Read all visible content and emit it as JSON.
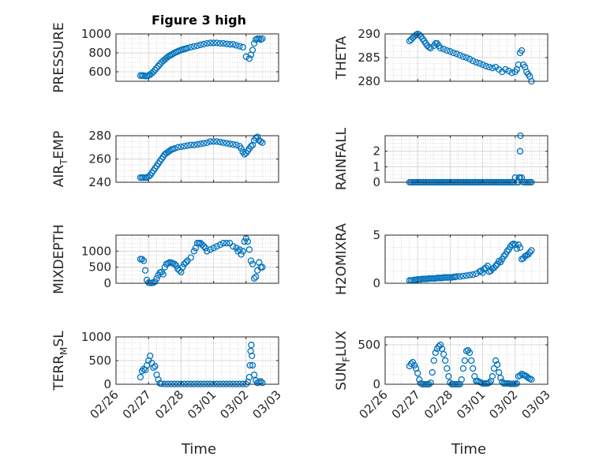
{
  "figure": {
    "title": "Figure 3 high",
    "xlabel": "Time",
    "date_ticks": [
      "02/26",
      "02/27",
      "02/28",
      "03/01",
      "03/02",
      "03/03"
    ],
    "marker_color": "#0072BD"
  },
  "chart_data": [
    {
      "type": "scatter",
      "name": "PRESSURE",
      "ylabel": "PRESSURE",
      "ylim": [
        500,
        1000
      ],
      "yticks": [
        600,
        800,
        1000
      ],
      "xlim": [
        "02/26",
        "03/03"
      ],
      "grid": true,
      "x": [
        26.75,
        26.8,
        26.85,
        26.9,
        26.95,
        27.0,
        27.05,
        27.1,
        27.15,
        27.2,
        27.25,
        27.3,
        27.35,
        27.4,
        27.45,
        27.5,
        27.55,
        27.6,
        27.65,
        27.7,
        27.75,
        27.8,
        27.85,
        27.9,
        27.95,
        28.0,
        28.05,
        28.1,
        28.15,
        28.2,
        28.3,
        28.4,
        28.5,
        28.6,
        28.7,
        28.8,
        28.9,
        29.0,
        29.1,
        29.2,
        29.3,
        29.4,
        29.5,
        29.6,
        29.7,
        29.8,
        29.9,
        30.0,
        30.1,
        30.15,
        30.2,
        30.25,
        30.3,
        30.35,
        30.4,
        30.45,
        30.5
      ],
      "y": [
        560,
        560,
        560,
        555,
        555,
        560,
        570,
        585,
        600,
        620,
        640,
        660,
        680,
        700,
        715,
        730,
        745,
        760,
        770,
        780,
        790,
        800,
        808,
        815,
        822,
        830,
        835,
        840,
        845,
        850,
        860,
        868,
        875,
        885,
        893,
        900,
        905,
        905,
        905,
        900,
        900,
        895,
        890,
        890,
        880,
        870,
        860,
        760,
        740,
        780,
        830,
        900,
        940,
        950,
        950,
        940,
        950
      ]
    },
    {
      "type": "scatter",
      "name": "THETA",
      "ylabel": "THETA",
      "ylim": [
        280,
        290
      ],
      "yticks": [
        280,
        285,
        290
      ],
      "xlim": [
        "02/26",
        "03/03"
      ],
      "grid": true,
      "x": [
        26.75,
        26.8,
        26.85,
        26.9,
        26.95,
        27.0,
        27.05,
        27.1,
        27.15,
        27.2,
        27.25,
        27.3,
        27.35,
        27.4,
        27.5,
        27.55,
        27.6,
        27.65,
        27.7,
        27.8,
        27.9,
        28.0,
        28.1,
        28.2,
        28.3,
        28.4,
        28.5,
        28.6,
        28.7,
        28.8,
        28.9,
        29.0,
        29.1,
        29.2,
        29.3,
        29.4,
        29.5,
        29.6,
        29.7,
        29.8,
        29.9,
        30.0,
        30.05,
        30.1,
        30.15,
        30.2,
        30.25,
        30.3,
        30.35,
        30.4,
        30.45,
        30.5
      ],
      "y": [
        288.5,
        288.8,
        289.2,
        289.5,
        289.8,
        290,
        289.8,
        289.5,
        289,
        288.5,
        288,
        287.5,
        287.2,
        287,
        287.5,
        288,
        288,
        287.5,
        287,
        286.8,
        286.5,
        286.3,
        286,
        285.8,
        285.5,
        285.2,
        285,
        284.7,
        284.3,
        284,
        283.8,
        283.5,
        283.2,
        283,
        282.8,
        283,
        282.5,
        282,
        282.5,
        282.2,
        281.8,
        282,
        282.5,
        283.5,
        286,
        286.5,
        283.5,
        283,
        282,
        281.5,
        281,
        280
      ]
    },
    {
      "type": "scatter",
      "name": "AIR_TEMP",
      "ylabel": "AIR_TEMP",
      "ylim": [
        240,
        280
      ],
      "yticks": [
        240,
        260,
        280
      ],
      "xlim": [
        "02/26",
        "03/03"
      ],
      "grid": true,
      "x": [
        26.75,
        26.8,
        26.85,
        26.9,
        26.95,
        27.0,
        27.05,
        27.1,
        27.15,
        27.2,
        27.25,
        27.3,
        27.35,
        27.4,
        27.45,
        27.5,
        27.55,
        27.6,
        27.65,
        27.7,
        27.75,
        27.8,
        27.9,
        28.0,
        28.1,
        28.2,
        28.3,
        28.4,
        28.5,
        28.6,
        28.7,
        28.8,
        28.9,
        29.0,
        29.1,
        29.2,
        29.3,
        29.4,
        29.5,
        29.6,
        29.7,
        29.8,
        29.85,
        29.9,
        29.95,
        30.0,
        30.05,
        30.1,
        30.15,
        30.2,
        30.25,
        30.3,
        30.35,
        30.4,
        30.45,
        30.5
      ],
      "y": [
        244,
        244,
        244,
        244,
        244,
        245,
        246,
        248,
        250,
        252,
        254,
        256,
        258,
        260,
        262,
        264,
        265,
        266,
        267,
        268,
        268.5,
        269,
        270,
        270.5,
        271,
        271.5,
        272,
        272,
        272.5,
        273,
        273.5,
        274,
        275,
        275,
        275,
        274.5,
        274,
        273.5,
        273,
        272.5,
        272,
        271,
        269,
        266,
        264,
        265,
        267,
        269,
        271,
        272,
        276,
        278,
        279,
        276,
        275,
        274
      ]
    },
    {
      "type": "scatter",
      "name": "RAINFALL",
      "ylabel": "RAINFALL",
      "ylim": [
        0,
        3
      ],
      "yticks": [
        0,
        1,
        2
      ],
      "xlim": [
        "02/26",
        "03/03"
      ],
      "grid": true,
      "x": [
        26.75,
        26.8,
        26.85,
        26.9,
        26.95,
        27.0,
        27.05,
        27.1,
        27.15,
        27.2,
        27.25,
        27.3,
        27.35,
        27.4,
        27.45,
        27.5,
        27.55,
        27.6,
        27.65,
        27.7,
        27.75,
        27.8,
        27.85,
        27.9,
        27.95,
        28.0,
        28.05,
        28.1,
        28.15,
        28.2,
        28.25,
        28.3,
        28.35,
        28.4,
        28.45,
        28.5,
        28.55,
        28.6,
        28.65,
        28.7,
        28.75,
        28.8,
        28.85,
        28.9,
        28.95,
        29.0,
        29.05,
        29.1,
        29.15,
        29.2,
        29.25,
        29.3,
        29.35,
        29.4,
        29.45,
        29.5,
        29.55,
        29.6,
        29.65,
        29.7,
        29.75,
        29.8,
        29.85,
        29.9,
        29.95,
        30.0,
        30.05,
        30.1,
        30.12,
        30.14,
        30.15,
        30.16,
        30.2,
        30.25,
        30.3,
        30.35,
        30.4,
        30.45,
        30.5
      ],
      "y": [
        0,
        0,
        0,
        0,
        0,
        0,
        0,
        0,
        0,
        0,
        0,
        0,
        0,
        0,
        0,
        0,
        0,
        0,
        0,
        0,
        0,
        0,
        0,
        0,
        0,
        0,
        0,
        0,
        0,
        0,
        0,
        0,
        0,
        0,
        0,
        0,
        0,
        0,
        0,
        0,
        0,
        0,
        0,
        0,
        0,
        0,
        0,
        0,
        0,
        0,
        0,
        0,
        0,
        0,
        0,
        0,
        0,
        0,
        0,
        0,
        0,
        0,
        0,
        0,
        0,
        0.3,
        0,
        0,
        0.3,
        0.3,
        2.0,
        3.0,
        0.3,
        0,
        0,
        0,
        0,
        0,
        0
      ]
    },
    {
      "type": "scatter",
      "name": "MIXDEPTH",
      "ylabel": "MIXDEPTH",
      "ylim": [
        0,
        1500
      ],
      "yticks": [
        0,
        500,
        1000
      ],
      "xlim": [
        "02/26",
        "03/03"
      ],
      "grid": true,
      "x": [
        26.75,
        26.8,
        26.85,
        26.9,
        26.95,
        27.0,
        27.05,
        27.1,
        27.15,
        27.2,
        27.25,
        27.3,
        27.35,
        27.4,
        27.45,
        27.5,
        27.55,
        27.6,
        27.65,
        27.7,
        27.75,
        27.8,
        27.85,
        27.9,
        27.95,
        28.0,
        28.05,
        28.1,
        28.15,
        28.2,
        28.3,
        28.4,
        28.45,
        28.5,
        28.55,
        28.6,
        28.65,
        28.7,
        28.75,
        28.8,
        28.9,
        29.0,
        29.1,
        29.2,
        29.3,
        29.4,
        29.5,
        29.6,
        29.7,
        29.75,
        29.8,
        29.85,
        29.9,
        29.95,
        30.0,
        30.05,
        30.1,
        30.15,
        30.2,
        30.25,
        30.3,
        30.35,
        30.4,
        30.45,
        30.5
      ],
      "y": [
        750,
        750,
        700,
        400,
        100,
        20,
        10,
        10,
        20,
        50,
        150,
        250,
        330,
        350,
        280,
        500,
        600,
        620,
        650,
        640,
        620,
        600,
        550,
        450,
        400,
        350,
        500,
        600,
        650,
        700,
        800,
        1000,
        1100,
        1250,
        1250,
        1250,
        1200,
        1150,
        1100,
        1000,
        1050,
        1100,
        1150,
        1200,
        1250,
        1250,
        1250,
        1150,
        1100,
        1000,
        1050,
        900,
        1000,
        1300,
        1400,
        1300,
        1050,
        700,
        600,
        150,
        200,
        400,
        650,
        500,
        500
      ]
    },
    {
      "type": "scatter",
      "name": "H2OMIXRA",
      "ylabel": "H2OMIXRA",
      "ylim": [
        0,
        5
      ],
      "yticks": [
        0,
        5
      ],
      "xlim": [
        "02/26",
        "03/03"
      ],
      "grid": true,
      "x": [
        26.75,
        26.8,
        26.85,
        26.9,
        26.95,
        27.0,
        27.05,
        27.1,
        27.15,
        27.2,
        27.25,
        27.3,
        27.35,
        27.4,
        27.45,
        27.5,
        27.55,
        27.6,
        27.65,
        27.7,
        27.75,
        27.8,
        27.85,
        27.9,
        27.95,
        28.0,
        28.05,
        28.1,
        28.15,
        28.2,
        28.3,
        28.4,
        28.5,
        28.6,
        28.7,
        28.8,
        28.9,
        28.95,
        29.0,
        29.05,
        29.1,
        29.15,
        29.2,
        29.25,
        29.3,
        29.35,
        29.4,
        29.45,
        29.5,
        29.55,
        29.6,
        29.65,
        29.7,
        29.75,
        29.8,
        29.85,
        29.9,
        29.95,
        30.0,
        30.05,
        30.1,
        30.15,
        30.2,
        30.25,
        30.3,
        30.35,
        30.4,
        30.45,
        30.5
      ],
      "y": [
        0.3,
        0.3,
        0.3,
        0.35,
        0.35,
        0.4,
        0.4,
        0.4,
        0.45,
        0.45,
        0.45,
        0.45,
        0.5,
        0.5,
        0.5,
        0.5,
        0.5,
        0.55,
        0.55,
        0.55,
        0.55,
        0.6,
        0.6,
        0.6,
        0.6,
        0.6,
        0.6,
        0.65,
        0.65,
        0.7,
        0.7,
        0.75,
        0.8,
        0.85,
        0.9,
        1.0,
        1.2,
        1.3,
        1.1,
        1.5,
        1.6,
        1.8,
        1.2,
        1.3,
        1.5,
        1.6,
        1.8,
        2.0,
        2.3,
        2.2,
        2.5,
        2.8,
        3.0,
        3.3,
        3.5,
        3.8,
        4.0,
        4.1,
        4.0,
        3.6,
        4.0,
        3.7,
        2.5,
        2.6,
        2.8,
        2.9,
        3.0,
        3.2,
        3.4
      ]
    },
    {
      "type": "scatter",
      "name": "TERR_MSL",
      "ylabel": "TERR_MSL",
      "ylim": [
        0,
        1000
      ],
      "yticks": [
        0,
        500,
        1000
      ],
      "xlim": [
        "02/26",
        "03/03"
      ],
      "grid": true,
      "x": [
        26.75,
        26.8,
        26.85,
        26.9,
        26.95,
        27.0,
        27.05,
        27.1,
        27.15,
        27.2,
        27.25,
        27.3,
        27.35,
        27.4,
        27.5,
        27.6,
        27.7,
        27.8,
        27.9,
        28.0,
        28.1,
        28.2,
        28.3,
        28.4,
        28.5,
        28.6,
        28.7,
        28.8,
        28.9,
        29.0,
        29.1,
        29.2,
        29.3,
        29.4,
        29.5,
        29.6,
        29.7,
        29.8,
        29.9,
        30.0,
        30.05,
        30.1,
        30.12,
        30.14,
        30.16,
        30.18,
        30.2,
        30.25,
        30.3,
        30.35,
        30.4,
        30.45,
        30.5
      ],
      "y": [
        150,
        280,
        320,
        300,
        400,
        500,
        600,
        450,
        350,
        380,
        200,
        100,
        20,
        10,
        5,
        5,
        5,
        5,
        5,
        5,
        5,
        5,
        5,
        5,
        5,
        5,
        5,
        5,
        5,
        5,
        5,
        5,
        5,
        5,
        5,
        5,
        5,
        5,
        5,
        5,
        50,
        150,
        400,
        700,
        830,
        600,
        400,
        200,
        80,
        30,
        50,
        60,
        30
      ]
    },
    {
      "type": "scatter",
      "name": "SUN_FLUX",
      "ylabel": "SUN_FLUX",
      "ylim": [
        0,
        600
      ],
      "yticks": [
        0,
        500
      ],
      "xlim": [
        "02/26",
        "03/03"
      ],
      "grid": true,
      "x": [
        26.75,
        26.8,
        26.85,
        26.9,
        26.95,
        27.0,
        27.05,
        27.1,
        27.15,
        27.2,
        27.25,
        27.3,
        27.35,
        27.4,
        27.45,
        27.5,
        27.55,
        27.6,
        27.65,
        27.7,
        27.75,
        27.8,
        27.85,
        27.9,
        27.95,
        28.0,
        28.05,
        28.1,
        28.15,
        28.2,
        28.25,
        28.3,
        28.35,
        28.4,
        28.45,
        28.5,
        28.55,
        28.6,
        28.65,
        28.7,
        28.75,
        28.8,
        28.85,
        28.9,
        28.95,
        29.0,
        29.05,
        29.1,
        29.15,
        29.2,
        29.25,
        29.3,
        29.35,
        29.4,
        29.45,
        29.5,
        29.55,
        29.6,
        29.65,
        29.7,
        29.75,
        29.8,
        29.85,
        29.9,
        29.95,
        30.0,
        30.05,
        30.1,
        30.15,
        30.2,
        30.25,
        30.3,
        30.35,
        30.4,
        30.45,
        30.5
      ],
      "y": [
        230,
        260,
        280,
        240,
        200,
        140,
        60,
        10,
        0,
        0,
        0,
        0,
        0,
        20,
        150,
        300,
        400,
        450,
        480,
        500,
        450,
        380,
        300,
        200,
        100,
        20,
        0,
        0,
        0,
        0,
        0,
        0,
        60,
        200,
        300,
        420,
        430,
        400,
        300,
        200,
        100,
        40,
        40,
        30,
        20,
        10,
        10,
        10,
        10,
        20,
        40,
        100,
        200,
        300,
        250,
        150,
        80,
        30,
        10,
        10,
        10,
        10,
        5,
        5,
        5,
        5,
        10,
        100,
        110,
        130,
        120,
        110,
        100,
        80,
        70,
        60
      ]
    }
  ]
}
